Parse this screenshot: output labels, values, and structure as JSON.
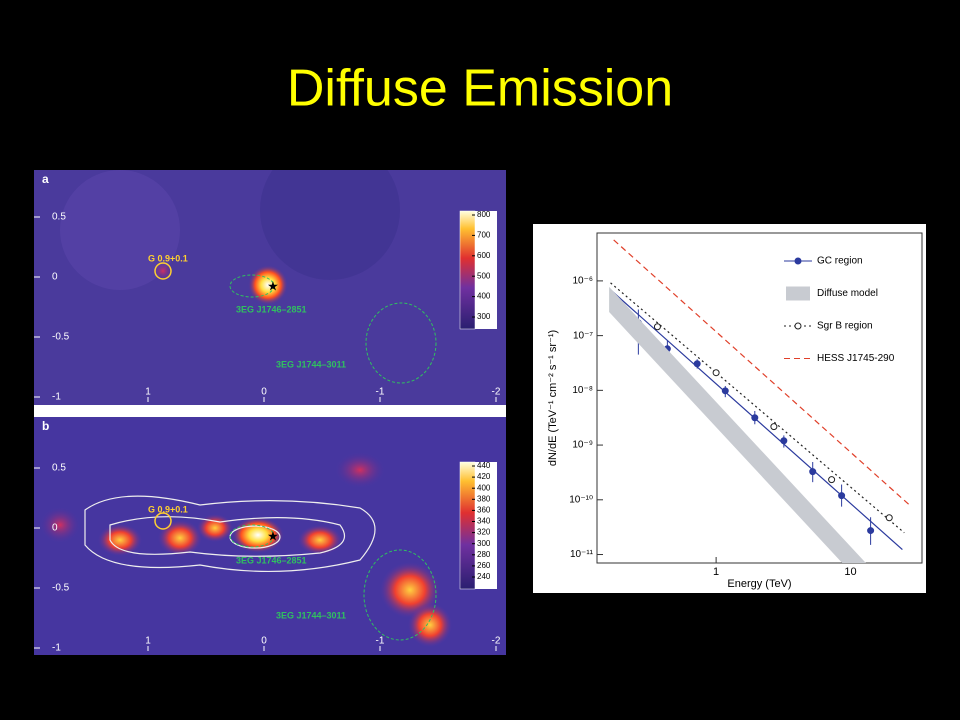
{
  "title": "Diffuse Emission",
  "sky_maps": [
    {
      "panel": "a",
      "x_ticks": [
        1,
        0,
        -1,
        -2
      ],
      "y_ticks": [
        0.5,
        0,
        -0.5,
        -1
      ],
      "sources": [
        "G 0.9+0.1",
        "3EG J1746–2851",
        "3EG J1744–3011"
      ],
      "colorbar_ticks": [
        300,
        400,
        500,
        600,
        700,
        800
      ]
    },
    {
      "panel": "b",
      "x_ticks": [
        1,
        0,
        -1,
        -2
      ],
      "y_ticks": [
        0.5,
        0,
        -0.5,
        -1
      ],
      "sources": [
        "G 0.9+0.1",
        "3EG J1746–2851",
        "3EG J1744–3011"
      ],
      "colorbar_ticks": [
        240,
        260,
        280,
        300,
        320,
        340,
        360,
        380,
        400,
        420,
        440
      ]
    }
  ],
  "chart_data": {
    "type": "scatter",
    "log_x": true,
    "log_y": true,
    "xlabel": "Energy (TeV)",
    "ylabel": "dN/dE (TeV⁻¹ cm⁻² s⁻¹ sr⁻¹)",
    "xlim": [
      0.13,
      34
    ],
    "ylim": [
      7e-12,
      7.5e-06
    ],
    "xticks": [
      1,
      10
    ],
    "yticks": [
      {
        "value": 1e-11,
        "label": "10⁻¹¹"
      },
      {
        "value": 1e-10,
        "label": "10⁻¹⁰"
      },
      {
        "value": 1e-09,
        "label": "10⁻⁹"
      },
      {
        "value": 1e-08,
        "label": "10⁻⁸"
      },
      {
        "value": 1e-07,
        "label": "10⁻⁷"
      },
      {
        "value": 1e-06,
        "label": "10⁻⁶"
      }
    ],
    "legend": "upper right",
    "series": [
      {
        "name": "GC region",
        "color": "#2b3a9e",
        "marker": "filled",
        "x": [
          0.264,
          0.434,
          0.723,
          1.17,
          1.94,
          3.19,
          5.23,
          8.58,
          14.1
        ],
        "values": [
          1.71e-07,
          5.74e-08,
          3.06e-08,
          9.8e-09,
          3.16e-09,
          1.2e-09,
          3.27e-10,
          1.19e-10,
          2.74e-11
        ],
        "lower": [
          4.5e-08,
          4e-08,
          2.5e-08,
          7.5e-09,
          2.4e-09,
          9e-10,
          2.1e-10,
          7.5e-11,
          1.5e-11
        ],
        "upper": [
          3e-07,
          8e-08,
          3.7e-08,
          1.2e-08,
          4.2e-09,
          1.5e-09,
          4.9e-10,
          1.9e-10,
          4.8e-11
        ],
        "fit": {
          "x": [
            0.164,
            24.3
          ],
          "values": [
            6.85e-07,
            1.23e-11
          ]
        }
      },
      {
        "name": "Diffuse model",
        "color": "#c8cbd1",
        "band": {
          "x": [
            0.16,
            13
          ],
          "upper": [
            7.77e-07,
            7e-12
          ],
          "lower": [
            2.7e-07,
            2.4e-12
          ]
        }
      },
      {
        "name": "Sgr B region",
        "color": "#222222",
        "marker": "open",
        "x": [
          0.366,
          1.0,
          2.69,
          7.23,
          19.4
        ],
        "values": [
          1.45e-07,
          2.1e-08,
          2.17e-09,
          2.34e-10,
          4.7e-11
        ],
        "fit": {
          "x": [
            0.164,
            25.1
          ],
          "values": [
            9.2e-07,
            2.5e-11
          ]
        }
      },
      {
        "name": "HESS J1745-290",
        "color": "#e0402a",
        "fit": {
          "x": [
            0.173,
            28.3
          ],
          "values": [
            5.6e-06,
            7.5e-11
          ]
        }
      }
    ]
  }
}
